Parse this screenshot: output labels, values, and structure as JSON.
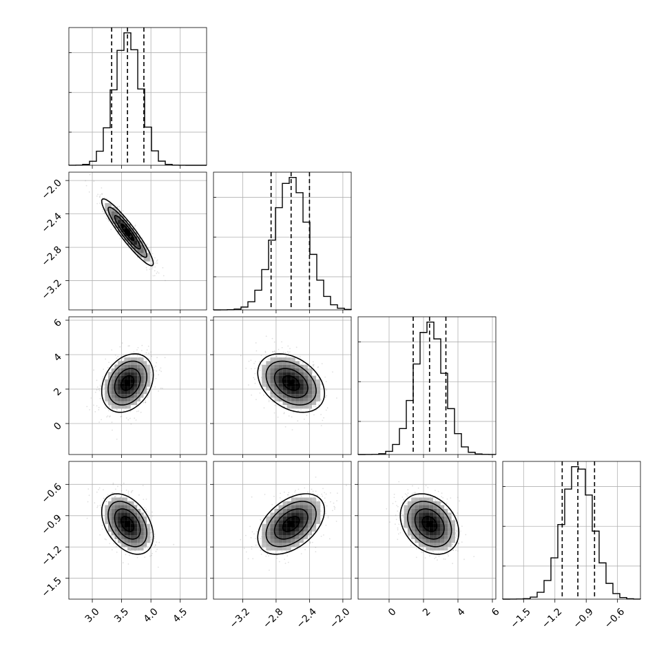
{
  "chart_data": {
    "type": "corner",
    "grid": true,
    "parameters": [
      {
        "index": 0,
        "mean": 3.6,
        "sd": 0.22,
        "quantiles": [
          3.33,
          3.6,
          3.88
        ],
        "range": [
          2.6,
          4.95
        ],
        "ticks": [
          3.0,
          3.5,
          4.0,
          4.5
        ],
        "tick_labels": [
          "3.0",
          "3.5",
          "4.0",
          "4.5"
        ]
      },
      {
        "index": 1,
        "mean": -2.62,
        "sd": 0.2,
        "quantiles": [
          -2.86,
          -2.62,
          -2.4
        ],
        "range": [
          -3.55,
          -1.9
        ],
        "ticks": [
          -3.2,
          -2.8,
          -2.4,
          -2.0
        ],
        "tick_labels": [
          "−3.2",
          "−2.8",
          "−2.4",
          "−2.0"
        ]
      },
      {
        "index": 2,
        "mean": 2.35,
        "sd": 0.85,
        "quantiles": [
          1.4,
          2.35,
          3.3
        ],
        "range": [
          -1.8,
          6.2
        ],
        "ticks": [
          0,
          2,
          4,
          6
        ],
        "tick_labels": [
          "0",
          "2",
          "4",
          "6"
        ]
      },
      {
        "index": 3,
        "mean": -0.98,
        "sd": 0.145,
        "quantiles": [
          -1.13,
          -0.98,
          -0.82
        ],
        "range": [
          -1.7,
          -0.38
        ],
        "ticks": [
          -1.5,
          -1.2,
          -0.9,
          -0.6
        ],
        "tick_labels": [
          "−1.5",
          "−1.2",
          "−0.9",
          "−0.6"
        ]
      }
    ],
    "correlations": {
      "1_0": -0.93,
      "2_0": 0.28,
      "2_1": -0.35,
      "3_0": -0.4,
      "3_1": 0.45,
      "3_2": -0.28
    },
    "histogram_bins": 20,
    "contour_levels_sigma": [
      0.5,
      1.0,
      1.5,
      2.0
    ],
    "colors": {
      "contour": "#000000",
      "points": "#8c8c8c",
      "density_max": "#000000",
      "grid": "#b0b0b0"
    }
  }
}
